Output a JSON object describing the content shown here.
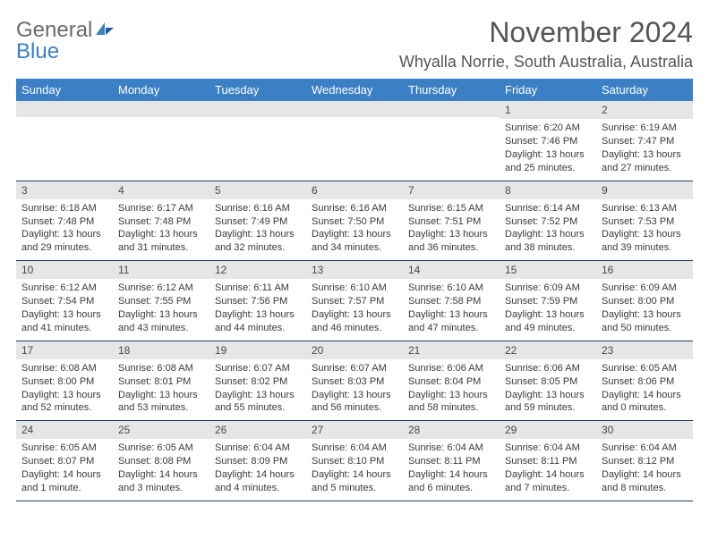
{
  "logo": {
    "text_gray": "General",
    "text_blue": "Blue"
  },
  "title": "November 2024",
  "subtitle": "Whyalla Norrie, South Australia, Australia",
  "colors": {
    "header_bg": "#3b7fc4",
    "daynum_bg": "#e6e6e6",
    "row_border": "#1f3a6d",
    "text": "#3a3a3a",
    "title_text": "#555555"
  },
  "fonts": {
    "title_size": 32,
    "subtitle_size": 18,
    "dayheader_size": 13,
    "cell_size": 11
  },
  "day_headers": [
    "Sunday",
    "Monday",
    "Tuesday",
    "Wednesday",
    "Thursday",
    "Friday",
    "Saturday"
  ],
  "weeks": [
    [
      null,
      null,
      null,
      null,
      null,
      {
        "n": "1",
        "sr": "6:20 AM",
        "ss": "7:46 PM",
        "dl": "13 hours and 25 minutes."
      },
      {
        "n": "2",
        "sr": "6:19 AM",
        "ss": "7:47 PM",
        "dl": "13 hours and 27 minutes."
      }
    ],
    [
      {
        "n": "3",
        "sr": "6:18 AM",
        "ss": "7:48 PM",
        "dl": "13 hours and 29 minutes."
      },
      {
        "n": "4",
        "sr": "6:17 AM",
        "ss": "7:48 PM",
        "dl": "13 hours and 31 minutes."
      },
      {
        "n": "5",
        "sr": "6:16 AM",
        "ss": "7:49 PM",
        "dl": "13 hours and 32 minutes."
      },
      {
        "n": "6",
        "sr": "6:16 AM",
        "ss": "7:50 PM",
        "dl": "13 hours and 34 minutes."
      },
      {
        "n": "7",
        "sr": "6:15 AM",
        "ss": "7:51 PM",
        "dl": "13 hours and 36 minutes."
      },
      {
        "n": "8",
        "sr": "6:14 AM",
        "ss": "7:52 PM",
        "dl": "13 hours and 38 minutes."
      },
      {
        "n": "9",
        "sr": "6:13 AM",
        "ss": "7:53 PM",
        "dl": "13 hours and 39 minutes."
      }
    ],
    [
      {
        "n": "10",
        "sr": "6:12 AM",
        "ss": "7:54 PM",
        "dl": "13 hours and 41 minutes."
      },
      {
        "n": "11",
        "sr": "6:12 AM",
        "ss": "7:55 PM",
        "dl": "13 hours and 43 minutes."
      },
      {
        "n": "12",
        "sr": "6:11 AM",
        "ss": "7:56 PM",
        "dl": "13 hours and 44 minutes."
      },
      {
        "n": "13",
        "sr": "6:10 AM",
        "ss": "7:57 PM",
        "dl": "13 hours and 46 minutes."
      },
      {
        "n": "14",
        "sr": "6:10 AM",
        "ss": "7:58 PM",
        "dl": "13 hours and 47 minutes."
      },
      {
        "n": "15",
        "sr": "6:09 AM",
        "ss": "7:59 PM",
        "dl": "13 hours and 49 minutes."
      },
      {
        "n": "16",
        "sr": "6:09 AM",
        "ss": "8:00 PM",
        "dl": "13 hours and 50 minutes."
      }
    ],
    [
      {
        "n": "17",
        "sr": "6:08 AM",
        "ss": "8:00 PM",
        "dl": "13 hours and 52 minutes."
      },
      {
        "n": "18",
        "sr": "6:08 AM",
        "ss": "8:01 PM",
        "dl": "13 hours and 53 minutes."
      },
      {
        "n": "19",
        "sr": "6:07 AM",
        "ss": "8:02 PM",
        "dl": "13 hours and 55 minutes."
      },
      {
        "n": "20",
        "sr": "6:07 AM",
        "ss": "8:03 PM",
        "dl": "13 hours and 56 minutes."
      },
      {
        "n": "21",
        "sr": "6:06 AM",
        "ss": "8:04 PM",
        "dl": "13 hours and 58 minutes."
      },
      {
        "n": "22",
        "sr": "6:06 AM",
        "ss": "8:05 PM",
        "dl": "13 hours and 59 minutes."
      },
      {
        "n": "23",
        "sr": "6:05 AM",
        "ss": "8:06 PM",
        "dl": "14 hours and 0 minutes."
      }
    ],
    [
      {
        "n": "24",
        "sr": "6:05 AM",
        "ss": "8:07 PM",
        "dl": "14 hours and 1 minute."
      },
      {
        "n": "25",
        "sr": "6:05 AM",
        "ss": "8:08 PM",
        "dl": "14 hours and 3 minutes."
      },
      {
        "n": "26",
        "sr": "6:04 AM",
        "ss": "8:09 PM",
        "dl": "14 hours and 4 minutes."
      },
      {
        "n": "27",
        "sr": "6:04 AM",
        "ss": "8:10 PM",
        "dl": "14 hours and 5 minutes."
      },
      {
        "n": "28",
        "sr": "6:04 AM",
        "ss": "8:11 PM",
        "dl": "14 hours and 6 minutes."
      },
      {
        "n": "29",
        "sr": "6:04 AM",
        "ss": "8:11 PM",
        "dl": "14 hours and 7 minutes."
      },
      {
        "n": "30",
        "sr": "6:04 AM",
        "ss": "8:12 PM",
        "dl": "14 hours and 8 minutes."
      }
    ]
  ],
  "labels": {
    "sunrise": "Sunrise:",
    "sunset": "Sunset:",
    "daylight": "Daylight:"
  }
}
